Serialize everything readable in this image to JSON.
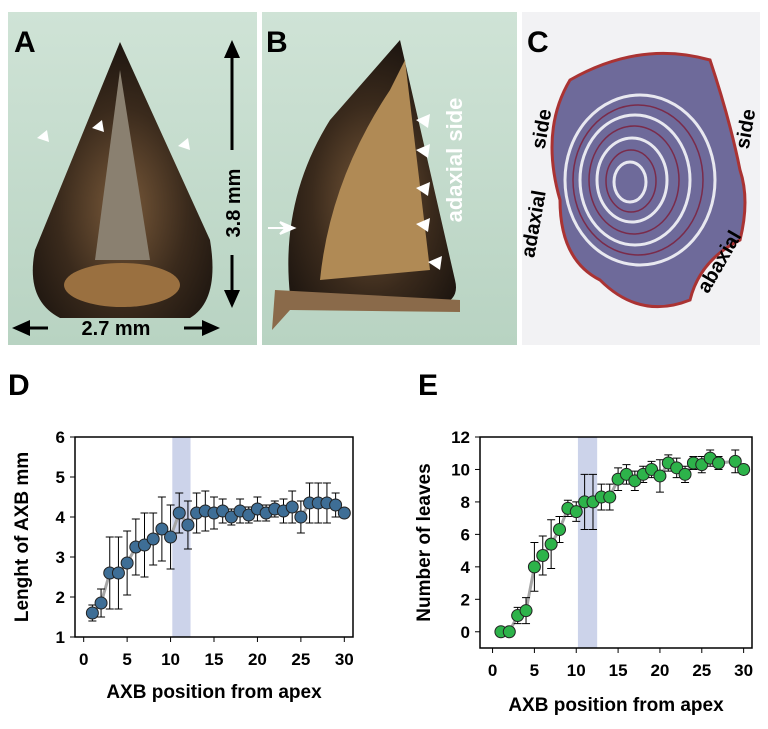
{
  "photos": {
    "panels": [
      "A",
      "B",
      "C"
    ],
    "height_label": "3.8 mm",
    "width_label": "2.7 mm",
    "b_label": "adaxial side",
    "c_labels": [
      "side",
      "adaxial",
      "side",
      "abaxial"
    ]
  },
  "chart_data": [
    {
      "type": "errorline",
      "label": "D",
      "xlabel": "AXB position from apex",
      "ylabel": "Lenght of AXB mm",
      "color": "#3e6e96",
      "line_color": "#a6a6a6",
      "band_color": "#ccd3ea",
      "highlight_range": [
        10.2,
        12.3
      ],
      "x": [
        1,
        2,
        3,
        4,
        5,
        6,
        7,
        8,
        9,
        10,
        11,
        12,
        13,
        14,
        15,
        16,
        17,
        18,
        19,
        20,
        21,
        22,
        23,
        24,
        25,
        26,
        27,
        28,
        29,
        30
      ],
      "values": [
        1.6,
        1.85,
        2.6,
        2.6,
        2.85,
        3.25,
        3.3,
        3.45,
        3.7,
        3.5,
        4.1,
        3.8,
        4.1,
        4.15,
        4.1,
        4.15,
        4.0,
        4.15,
        4.05,
        4.2,
        4.1,
        4.2,
        4.15,
        4.25,
        4.0,
        4.35,
        4.35,
        4.35,
        4.3,
        4.1
      ],
      "errors": [
        0.2,
        0.35,
        0.9,
        0.9,
        0.8,
        0.7,
        0.8,
        0.65,
        0.8,
        0.8,
        0.5,
        0.6,
        0.5,
        0.5,
        0.4,
        0.3,
        0.2,
        0.3,
        0.2,
        0.3,
        0.2,
        0.2,
        0.3,
        0.4,
        0.4,
        0.5,
        0.5,
        0.5,
        0.3,
        0.1
      ],
      "xlim": [
        -1,
        31
      ],
      "ylim": [
        1,
        6
      ],
      "xticks": [
        0,
        5,
        10,
        15,
        20,
        25,
        30
      ],
      "yticks": [
        1,
        2,
        3,
        4,
        5,
        6
      ]
    },
    {
      "type": "errorline",
      "label": "E",
      "xlabel": "AXB position from apex",
      "ylabel": "Number of leaves",
      "color": "#2db34a",
      "line_color": "#a6a6a6",
      "band_color": "#ccd3ea",
      "highlight_range": [
        10.2,
        12.5
      ],
      "x": [
        1,
        2,
        3,
        4,
        5,
        6,
        7,
        8,
        9,
        10,
        11,
        12,
        13,
        14,
        15,
        16,
        17,
        18,
        19,
        20,
        21,
        22,
        23,
        24,
        25,
        26,
        27,
        29,
        30
      ],
      "values": [
        0,
        0,
        1.0,
        1.3,
        4.0,
        4.7,
        5.4,
        6.3,
        7.6,
        7.4,
        8.0,
        8.0,
        8.3,
        8.3,
        9.4,
        9.7,
        9.3,
        9.7,
        10.0,
        9.6,
        10.4,
        10.1,
        9.7,
        10.4,
        10.3,
        10.7,
        10.4,
        10.5,
        10.0
      ],
      "errors": [
        0.1,
        0.1,
        0.5,
        0.8,
        1.5,
        1.2,
        1.5,
        0.8,
        0.5,
        0.6,
        1.7,
        1.7,
        0.8,
        0.8,
        0.7,
        0.6,
        0.6,
        0.5,
        0.5,
        1.0,
        0.5,
        0.6,
        0.5,
        0.4,
        0.5,
        0.5,
        0.4,
        0.7,
        0.3
      ],
      "xlim": [
        -1.5,
        31
      ],
      "ylim": [
        -1,
        12
      ],
      "xticks": [
        0,
        5,
        10,
        15,
        20,
        25,
        30
      ],
      "yticks": [
        0,
        2,
        4,
        6,
        8,
        10,
        12
      ]
    }
  ]
}
